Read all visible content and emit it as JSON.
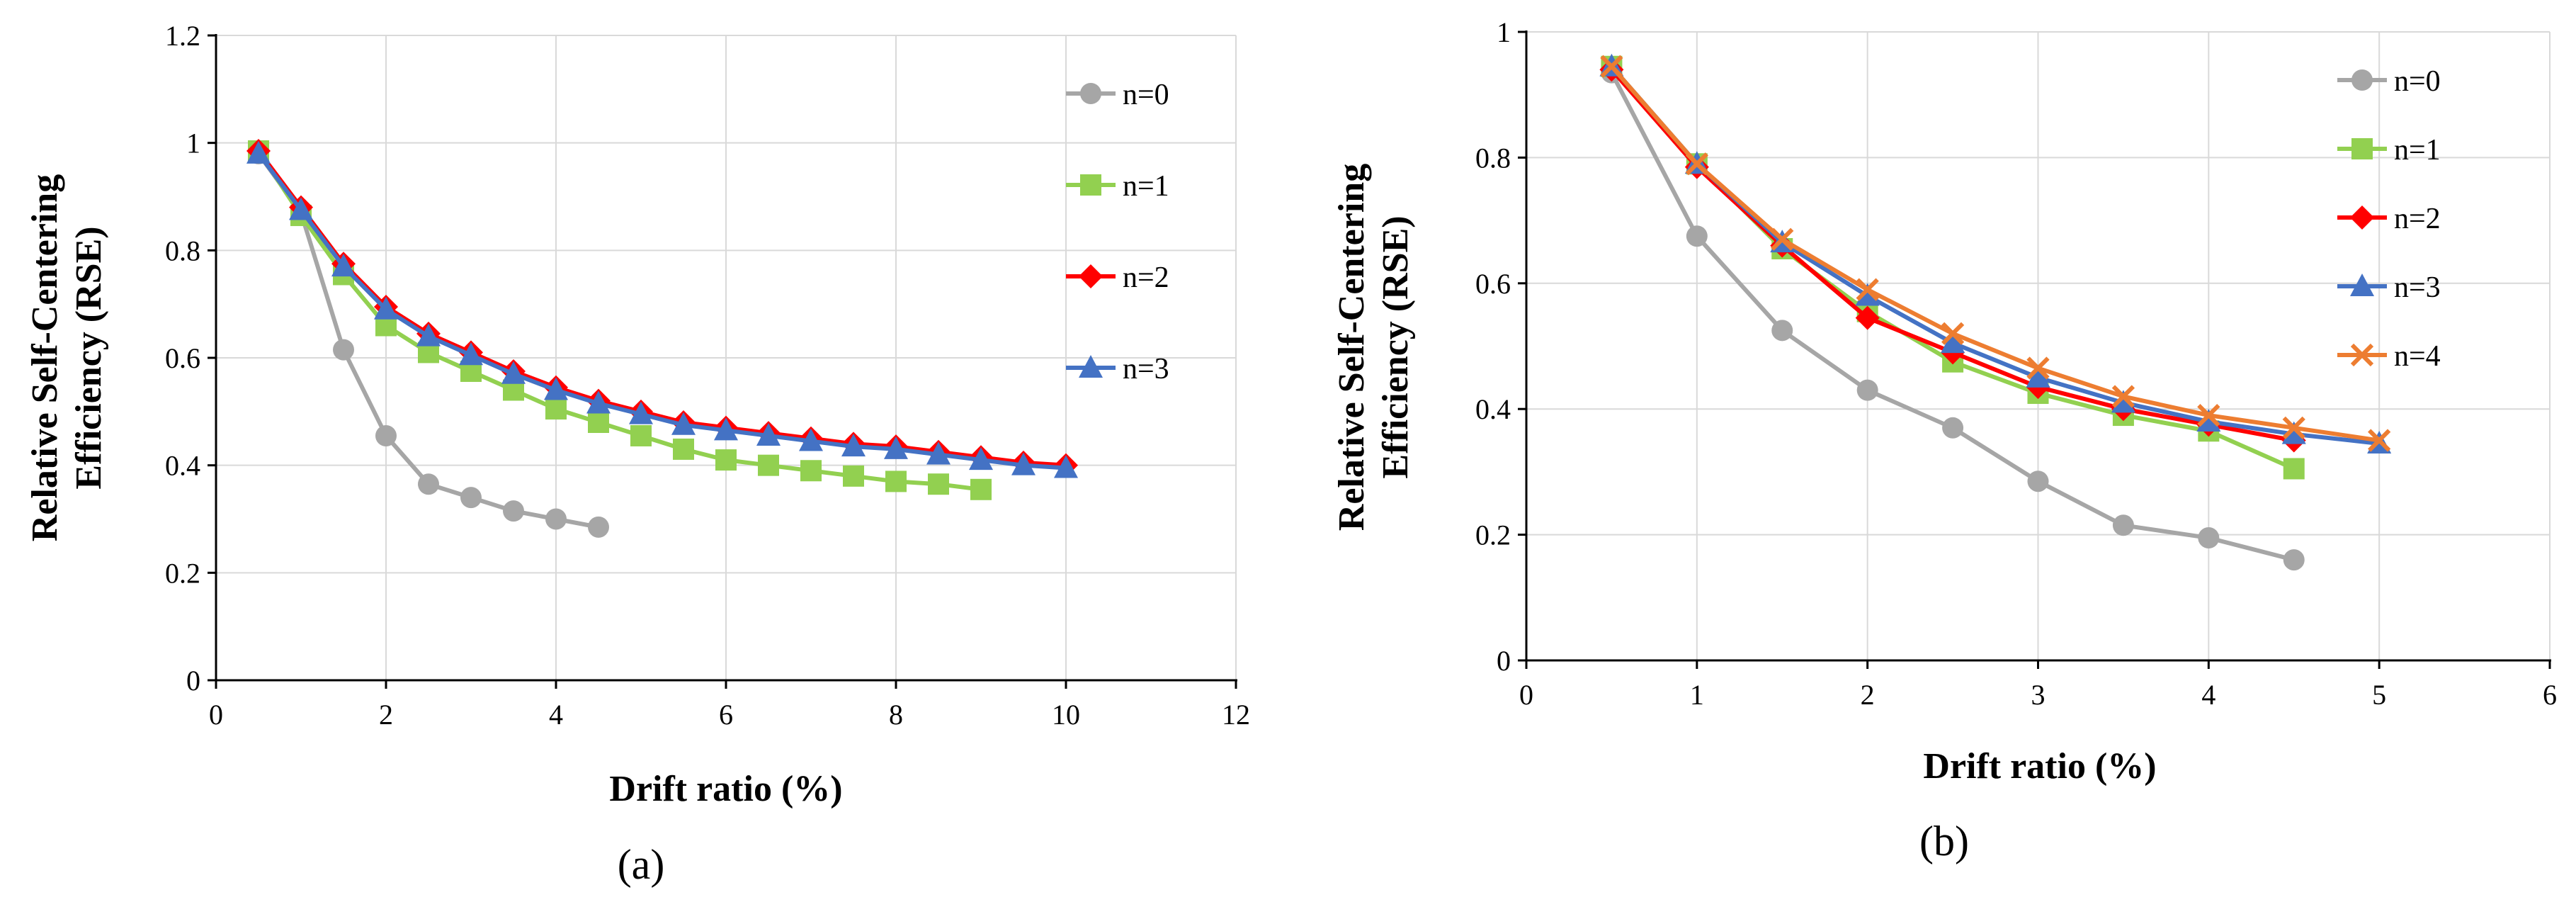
{
  "chart_data": [
    {
      "type": "line",
      "title": "",
      "caption": "(a)",
      "xlabel": "Drift ratio (%)",
      "ylabel_line1": "Relative Self-Centering",
      "ylabel_line2": "Efficiency (RSE)",
      "xlim": [
        0,
        12
      ],
      "ylim": [
        0,
        1.2
      ],
      "x_ticks": [
        0,
        2,
        4,
        6,
        8,
        10,
        12
      ],
      "y_ticks": [
        0,
        0.2,
        0.4,
        0.6,
        0.8,
        1,
        1.2
      ],
      "x_tick_labels": [
        "0",
        "2",
        "4",
        "6",
        "8",
        "10",
        "12"
      ],
      "y_tick_labels": [
        "0",
        "0.2",
        "0.4",
        "0.6",
        "0.8",
        "1",
        "1.2"
      ],
      "grid": true,
      "legend_position": "right",
      "series": [
        {
          "name": "n=0",
          "color": "#A6A6A6",
          "marker": "circle",
          "x": [
            0.5,
            1.0,
            1.5,
            2.0,
            2.5,
            3.0,
            3.5,
            4.0,
            4.5
          ],
          "y": [
            0.98,
            0.87,
            0.615,
            0.455,
            0.365,
            0.34,
            0.315,
            0.3,
            0.285
          ]
        },
        {
          "name": "n=1",
          "color": "#92D050",
          "marker": "square",
          "x": [
            0.5,
            1.0,
            1.5,
            2.0,
            2.5,
            3.0,
            3.5,
            4.0,
            4.5,
            5.0,
            5.5,
            6.0,
            6.5,
            7.0,
            7.5,
            8.0,
            8.5,
            9.0
          ],
          "y": [
            0.985,
            0.865,
            0.755,
            0.66,
            0.61,
            0.575,
            0.54,
            0.505,
            0.48,
            0.455,
            0.43,
            0.41,
            0.4,
            0.39,
            0.38,
            0.37,
            0.365,
            0.355
          ]
        },
        {
          "name": "n=2",
          "color": "#FF0000",
          "marker": "diamond",
          "x": [
            0.5,
            1.0,
            1.5,
            2.0,
            2.5,
            3.0,
            3.5,
            4.0,
            4.5,
            5.0,
            5.5,
            6.0,
            6.5,
            7.0,
            7.5,
            8.0,
            8.5,
            9.0,
            9.5,
            10.0
          ],
          "y": [
            0.985,
            0.88,
            0.775,
            0.695,
            0.645,
            0.61,
            0.575,
            0.545,
            0.52,
            0.5,
            0.48,
            0.47,
            0.46,
            0.45,
            0.44,
            0.435,
            0.425,
            0.415,
            0.405,
            0.4
          ]
        },
        {
          "name": "n=3",
          "color": "#4472C4",
          "marker": "triangle",
          "x": [
            0.5,
            1.0,
            1.5,
            2.0,
            2.5,
            3.0,
            3.5,
            4.0,
            4.5,
            5.0,
            5.5,
            6.0,
            6.5,
            7.0,
            7.5,
            8.0,
            8.5,
            9.0,
            9.5,
            10.0
          ],
          "y": [
            0.98,
            0.875,
            0.77,
            0.69,
            0.64,
            0.605,
            0.57,
            0.54,
            0.515,
            0.495,
            0.475,
            0.465,
            0.455,
            0.445,
            0.435,
            0.43,
            0.42,
            0.41,
            0.4,
            0.395
          ]
        }
      ]
    },
    {
      "type": "line",
      "title": "",
      "caption": "(b)",
      "xlabel": "Drift ratio (%)",
      "ylabel_line1": "Relative Self-Centering",
      "ylabel_line2": "Efficiency (RSE)",
      "xlim": [
        0,
        6
      ],
      "ylim": [
        0,
        1
      ],
      "x_ticks": [
        0,
        1,
        2,
        3,
        4,
        5,
        6
      ],
      "y_ticks": [
        0,
        0.2,
        0.4,
        0.6,
        0.8,
        1
      ],
      "x_tick_labels": [
        "0",
        "1",
        "2",
        "3",
        "4",
        "5",
        "6"
      ],
      "y_tick_labels": [
        "0",
        "0.2",
        "0.4",
        "0.6",
        "0.8",
        "1"
      ],
      "grid": true,
      "legend_position": "right",
      "series": [
        {
          "name": "n=0",
          "color": "#A6A6A6",
          "marker": "circle",
          "x": [
            0.5,
            1.0,
            1.5,
            2.0,
            2.5,
            3.0,
            3.5,
            4.0,
            4.5
          ],
          "y": [
            0.935,
            0.675,
            0.525,
            0.43,
            0.37,
            0.285,
            0.215,
            0.195,
            0.16
          ]
        },
        {
          "name": "n=1",
          "color": "#92D050",
          "marker": "square",
          "x": [
            0.5,
            1.0,
            1.5,
            2.0,
            2.5,
            3.0,
            3.5,
            4.0,
            4.5
          ],
          "y": [
            0.945,
            0.79,
            0.655,
            0.555,
            0.475,
            0.425,
            0.39,
            0.365,
            0.305
          ]
        },
        {
          "name": "n=2",
          "color": "#FF0000",
          "marker": "diamond",
          "x": [
            0.5,
            1.0,
            1.5,
            2.0,
            2.5,
            3.0,
            3.5,
            4.0,
            4.5
          ],
          "y": [
            0.94,
            0.785,
            0.66,
            0.545,
            0.49,
            0.435,
            0.4,
            0.375,
            0.35
          ]
        },
        {
          "name": "n=3",
          "color": "#4472C4",
          "marker": "triangle",
          "x": [
            0.5,
            1.0,
            1.5,
            2.0,
            2.5,
            3.0,
            3.5,
            4.0,
            4.5,
            5.0
          ],
          "y": [
            0.945,
            0.79,
            0.665,
            0.58,
            0.505,
            0.45,
            0.41,
            0.38,
            0.36,
            0.345
          ]
        },
        {
          "name": "n=4",
          "color": "#ED7D31",
          "marker": "x",
          "x": [
            0.5,
            1.0,
            1.5,
            2.0,
            2.5,
            3.0,
            3.5,
            4.0,
            4.5,
            5.0
          ],
          "y": [
            0.945,
            0.79,
            0.67,
            0.59,
            0.52,
            0.465,
            0.42,
            0.39,
            0.37,
            0.35
          ]
        }
      ]
    }
  ]
}
